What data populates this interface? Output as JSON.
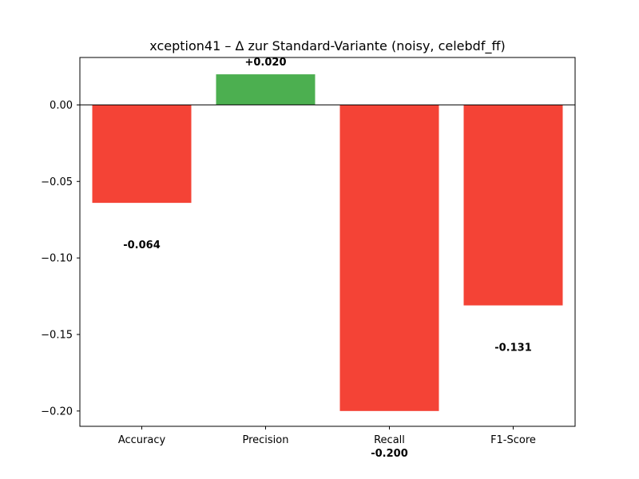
{
  "chart_data": {
    "type": "bar",
    "title": "xception41 – Δ zur Standard-Variante (noisy, celebdf_ff)",
    "xlabel": "",
    "ylabel": "",
    "categories": [
      "Accuracy",
      "Precision",
      "Recall",
      "F1-Score"
    ],
    "values": [
      -0.064,
      0.02,
      -0.2,
      -0.131
    ],
    "data_labels": [
      "-0.064",
      "+0.020",
      "-0.200",
      "-0.131"
    ],
    "ylim": [
      -0.21,
      0.031
    ],
    "yticks": [
      0.0,
      -0.05,
      -0.1,
      -0.15,
      -0.2
    ],
    "ytick_labels": [
      "0.00",
      "−0.05",
      "−0.10",
      "−0.15",
      "−0.20"
    ],
    "grid": false,
    "zero_line": true,
    "colors": {
      "positive": "#4caf50",
      "negative": "#f44336"
    }
  }
}
